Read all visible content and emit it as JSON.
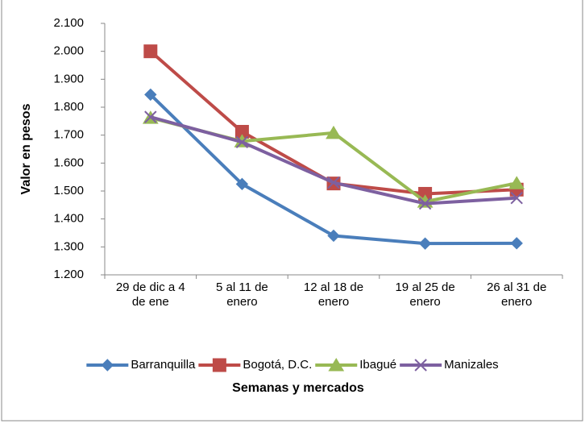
{
  "chart_data": {
    "type": "line",
    "categories": [
      "29 de dic a 4 de ene",
      "5 al 11 de enero",
      "12 al 18 de enero",
      "19 al 25 de enero",
      "26 al 31 de enero"
    ],
    "series": [
      {
        "name": "Barranquilla",
        "color": "#4a7ebb",
        "marker": "diamond",
        "values": [
          1845,
          1525,
          1340,
          1312,
          1313
        ]
      },
      {
        "name": "Bogotá, D.C.",
        "color": "#be4b48",
        "marker": "square",
        "values": [
          2000,
          1712,
          1527,
          1490,
          1505
        ]
      },
      {
        "name": "Ibagué",
        "color": "#98b954",
        "marker": "triangle",
        "values": [
          1762,
          1678,
          1708,
          1462,
          1528
        ]
      },
      {
        "name": "Manizales",
        "color": "#7d60a0",
        "marker": "x",
        "values": [
          1765,
          1675,
          1530,
          1455,
          1475
        ]
      }
    ],
    "ylim": [
      1200,
      2100
    ],
    "yticks": [
      {
        "value": 1200,
        "label": "1.200"
      },
      {
        "value": 1300,
        "label": "1.300"
      },
      {
        "value": 1400,
        "label": "1.400"
      },
      {
        "value": 1500,
        "label": "1.500"
      },
      {
        "value": 1600,
        "label": "1.600"
      },
      {
        "value": 1700,
        "label": "1.700"
      },
      {
        "value": 1800,
        "label": "1.800"
      },
      {
        "value": 1900,
        "label": "1.900"
      },
      {
        "value": 2000,
        "label": "2.000"
      },
      {
        "value": 2100,
        "label": "2.100"
      }
    ],
    "ylabel": "Valor en pesos",
    "xlabel": "Semanas y mercados",
    "grid": false,
    "legend": "bottom"
  }
}
